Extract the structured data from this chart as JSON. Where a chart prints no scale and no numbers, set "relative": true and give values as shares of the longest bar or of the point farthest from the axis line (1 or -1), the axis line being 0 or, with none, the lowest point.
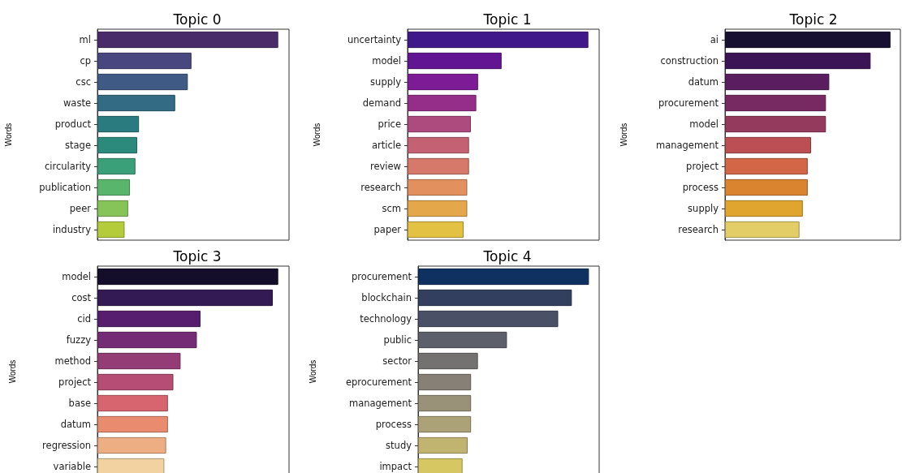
{
  "chart_data": [
    {
      "type": "bar",
      "orientation": "horizontal",
      "relative": true,
      "title": "Topic 0",
      "ylabel": "Words",
      "categories": [
        "ml",
        "cp",
        "csc",
        "waste",
        "product",
        "stage",
        "circularity",
        "publication",
        "peer",
        "industry"
      ],
      "values": [
        1,
        0.52,
        0.5,
        0.43,
        0.23,
        0.22,
        0.21,
        0.18,
        0.17,
        0.15
      ],
      "colors": [
        "#4a2b6a",
        "#48477f",
        "#3e5a85",
        "#336b85",
        "#2a7b80",
        "#2b8a7c",
        "#3aa07a",
        "#5ab56c",
        "#86c45a",
        "#b4cb3a"
      ]
    },
    {
      "type": "bar",
      "orientation": "horizontal",
      "relative": true,
      "title": "Topic 1",
      "ylabel": "Words",
      "categories": [
        "uncertainty",
        "model",
        "supply",
        "demand",
        "price",
        "article",
        "review",
        "research",
        "scm",
        "paper"
      ],
      "values": [
        1,
        0.52,
        0.39,
        0.38,
        0.35,
        0.34,
        0.34,
        0.33,
        0.33,
        0.31
      ],
      "colors": [
        "#41188a",
        "#621592",
        "#7d1a96",
        "#952e88",
        "#ad4a7e",
        "#c46173",
        "#d6786a",
        "#e1905e",
        "#e4a84a",
        "#e2c143"
      ]
    },
    {
      "type": "bar",
      "orientation": "horizontal",
      "relative": true,
      "title": "Topic 2",
      "ylabel": "Words",
      "categories": [
        "ai",
        "construction",
        "datum",
        "procurement",
        "model",
        "management",
        "project",
        "process",
        "supply",
        "research"
      ],
      "values": [
        1,
        0.88,
        0.63,
        0.61,
        0.61,
        0.52,
        0.5,
        0.5,
        0.47,
        0.45
      ],
      "colors": [
        "#181030",
        "#3b1455",
        "#5a1e60",
        "#772a62",
        "#943a5c",
        "#bb4f54",
        "#d26646",
        "#da8430",
        "#e0a52f",
        "#e3cd66"
      ]
    },
    {
      "type": "bar",
      "orientation": "horizontal",
      "relative": true,
      "title": "Topic 3",
      "ylabel": "Words",
      "categories": [
        "model",
        "cost",
        "cid",
        "fuzzy",
        "method",
        "project",
        "base",
        "datum",
        "regression",
        "variable"
      ],
      "values": [
        1,
        0.97,
        0.57,
        0.55,
        0.46,
        0.42,
        0.39,
        0.39,
        0.38,
        0.37
      ],
      "colors": [
        "#140e2b",
        "#341a55",
        "#571e6f",
        "#742c74",
        "#933c76",
        "#b54d74",
        "#d76570",
        "#e88b6e",
        "#edae84",
        "#f1d2a0"
      ]
    },
    {
      "type": "bar",
      "orientation": "horizontal",
      "relative": true,
      "title": "Topic 4",
      "ylabel": "Words",
      "categories": [
        "procurement",
        "blockchain",
        "technology",
        "public",
        "sector",
        "eprocurement",
        "management",
        "process",
        "study",
        "impact"
      ],
      "values": [
        1,
        0.9,
        0.82,
        0.52,
        0.35,
        0.31,
        0.31,
        0.31,
        0.29,
        0.26
      ],
      "colors": [
        "#0e3161",
        "#323f5f",
        "#4a5066",
        "#5d606a",
        "#737270",
        "#868076",
        "#999178",
        "#aba278",
        "#c1b470",
        "#d7c762"
      ]
    }
  ]
}
